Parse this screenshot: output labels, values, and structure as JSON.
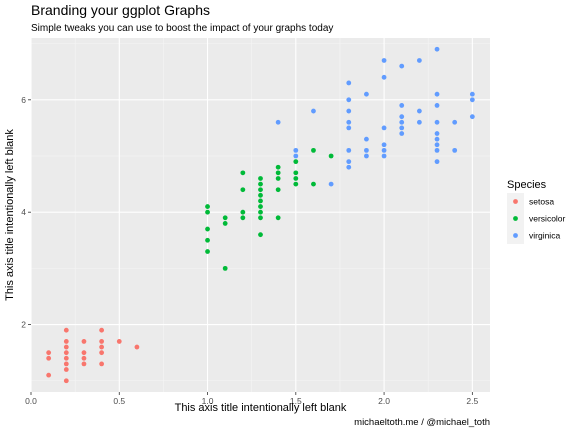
{
  "chart_data": {
    "type": "scatter",
    "title": "Branding your ggplot Graphs",
    "subtitle": "Simple tweaks you can use to boost the impact of your graphs today",
    "xlabel": "This axis title intentionally left blank",
    "ylabel": "This axis title intentionally left blank",
    "caption": "michaeltoth.me / @michael_toth",
    "xlim": [
      0,
      2.6
    ],
    "ylim": [
      0.8,
      7.1
    ],
    "x_ticks": [
      0.0,
      0.5,
      1.0,
      1.5,
      2.0,
      2.5
    ],
    "x_tick_labels": [
      "0.0",
      "0.5",
      "1.0",
      "1.5",
      "2.0",
      "2.5"
    ],
    "y_ticks": [
      2,
      4,
      6
    ],
    "y_tick_labels": [
      "2",
      "4",
      "6"
    ],
    "grid": true,
    "legend": {
      "title": "Species",
      "position": "right"
    },
    "series": [
      {
        "name": "setosa",
        "color": "#F8766D",
        "points": [
          [
            0.1,
            1.1
          ],
          [
            0.1,
            1.4
          ],
          [
            0.1,
            1.5
          ],
          [
            0.2,
            1.0
          ],
          [
            0.2,
            1.2
          ],
          [
            0.2,
            1.3
          ],
          [
            0.2,
            1.4
          ],
          [
            0.2,
            1.5
          ],
          [
            0.2,
            1.6
          ],
          [
            0.2,
            1.7
          ],
          [
            0.2,
            1.9
          ],
          [
            0.3,
            1.3
          ],
          [
            0.3,
            1.4
          ],
          [
            0.3,
            1.5
          ],
          [
            0.3,
            1.7
          ],
          [
            0.4,
            1.3
          ],
          [
            0.4,
            1.5
          ],
          [
            0.4,
            1.6
          ],
          [
            0.4,
            1.7
          ],
          [
            0.4,
            1.9
          ],
          [
            0.5,
            1.7
          ],
          [
            0.6,
            1.6
          ]
        ]
      },
      {
        "name": "versicolor",
        "color": "#00BA38",
        "points": [
          [
            1.0,
            3.3
          ],
          [
            1.0,
            3.5
          ],
          [
            1.0,
            3.7
          ],
          [
            1.0,
            4.0
          ],
          [
            1.0,
            4.1
          ],
          [
            1.1,
            3.0
          ],
          [
            1.1,
            3.8
          ],
          [
            1.1,
            3.9
          ],
          [
            1.2,
            3.9
          ],
          [
            1.2,
            4.0
          ],
          [
            1.2,
            4.4
          ],
          [
            1.2,
            4.7
          ],
          [
            1.3,
            3.6
          ],
          [
            1.3,
            3.9
          ],
          [
            1.3,
            4.0
          ],
          [
            1.3,
            4.1
          ],
          [
            1.3,
            4.2
          ],
          [
            1.3,
            4.3
          ],
          [
            1.3,
            4.4
          ],
          [
            1.3,
            4.5
          ],
          [
            1.3,
            4.6
          ],
          [
            1.4,
            3.9
          ],
          [
            1.4,
            4.4
          ],
          [
            1.4,
            4.6
          ],
          [
            1.4,
            4.7
          ],
          [
            1.4,
            4.8
          ],
          [
            1.5,
            4.5
          ],
          [
            1.5,
            4.6
          ],
          [
            1.5,
            4.7
          ],
          [
            1.5,
            4.9
          ],
          [
            1.6,
            4.5
          ],
          [
            1.6,
            5.1
          ],
          [
            1.7,
            5.0
          ]
        ]
      },
      {
        "name": "virginica",
        "color": "#619CFF",
        "points": [
          [
            1.4,
            5.6
          ],
          [
            1.5,
            5.0
          ],
          [
            1.5,
            5.1
          ],
          [
            1.6,
            5.8
          ],
          [
            1.7,
            4.5
          ],
          [
            1.8,
            4.8
          ],
          [
            1.8,
            4.9
          ],
          [
            1.8,
            5.1
          ],
          [
            1.8,
            5.5
          ],
          [
            1.8,
            5.6
          ],
          [
            1.8,
            5.8
          ],
          [
            1.8,
            6.0
          ],
          [
            1.8,
            6.3
          ],
          [
            1.9,
            5.0
          ],
          [
            1.9,
            5.1
          ],
          [
            1.9,
            5.3
          ],
          [
            1.9,
            6.1
          ],
          [
            2.0,
            5.0
          ],
          [
            2.0,
            5.1
          ],
          [
            2.0,
            5.2
          ],
          [
            2.0,
            5.5
          ],
          [
            2.0,
            6.4
          ],
          [
            2.0,
            6.7
          ],
          [
            2.1,
            5.4
          ],
          [
            2.1,
            5.5
          ],
          [
            2.1,
            5.6
          ],
          [
            2.1,
            5.7
          ],
          [
            2.1,
            5.9
          ],
          [
            2.1,
            6.6
          ],
          [
            2.2,
            5.6
          ],
          [
            2.2,
            5.8
          ],
          [
            2.2,
            6.7
          ],
          [
            2.3,
            4.9
          ],
          [
            2.3,
            5.1
          ],
          [
            2.3,
            5.2
          ],
          [
            2.3,
            5.3
          ],
          [
            2.3,
            5.4
          ],
          [
            2.3,
            5.6
          ],
          [
            2.3,
            5.9
          ],
          [
            2.3,
            6.1
          ],
          [
            2.3,
            6.9
          ],
          [
            2.4,
            5.1
          ],
          [
            2.4,
            5.6
          ],
          [
            2.5,
            5.7
          ],
          [
            2.5,
            6.0
          ],
          [
            2.5,
            6.1
          ]
        ]
      }
    ]
  }
}
